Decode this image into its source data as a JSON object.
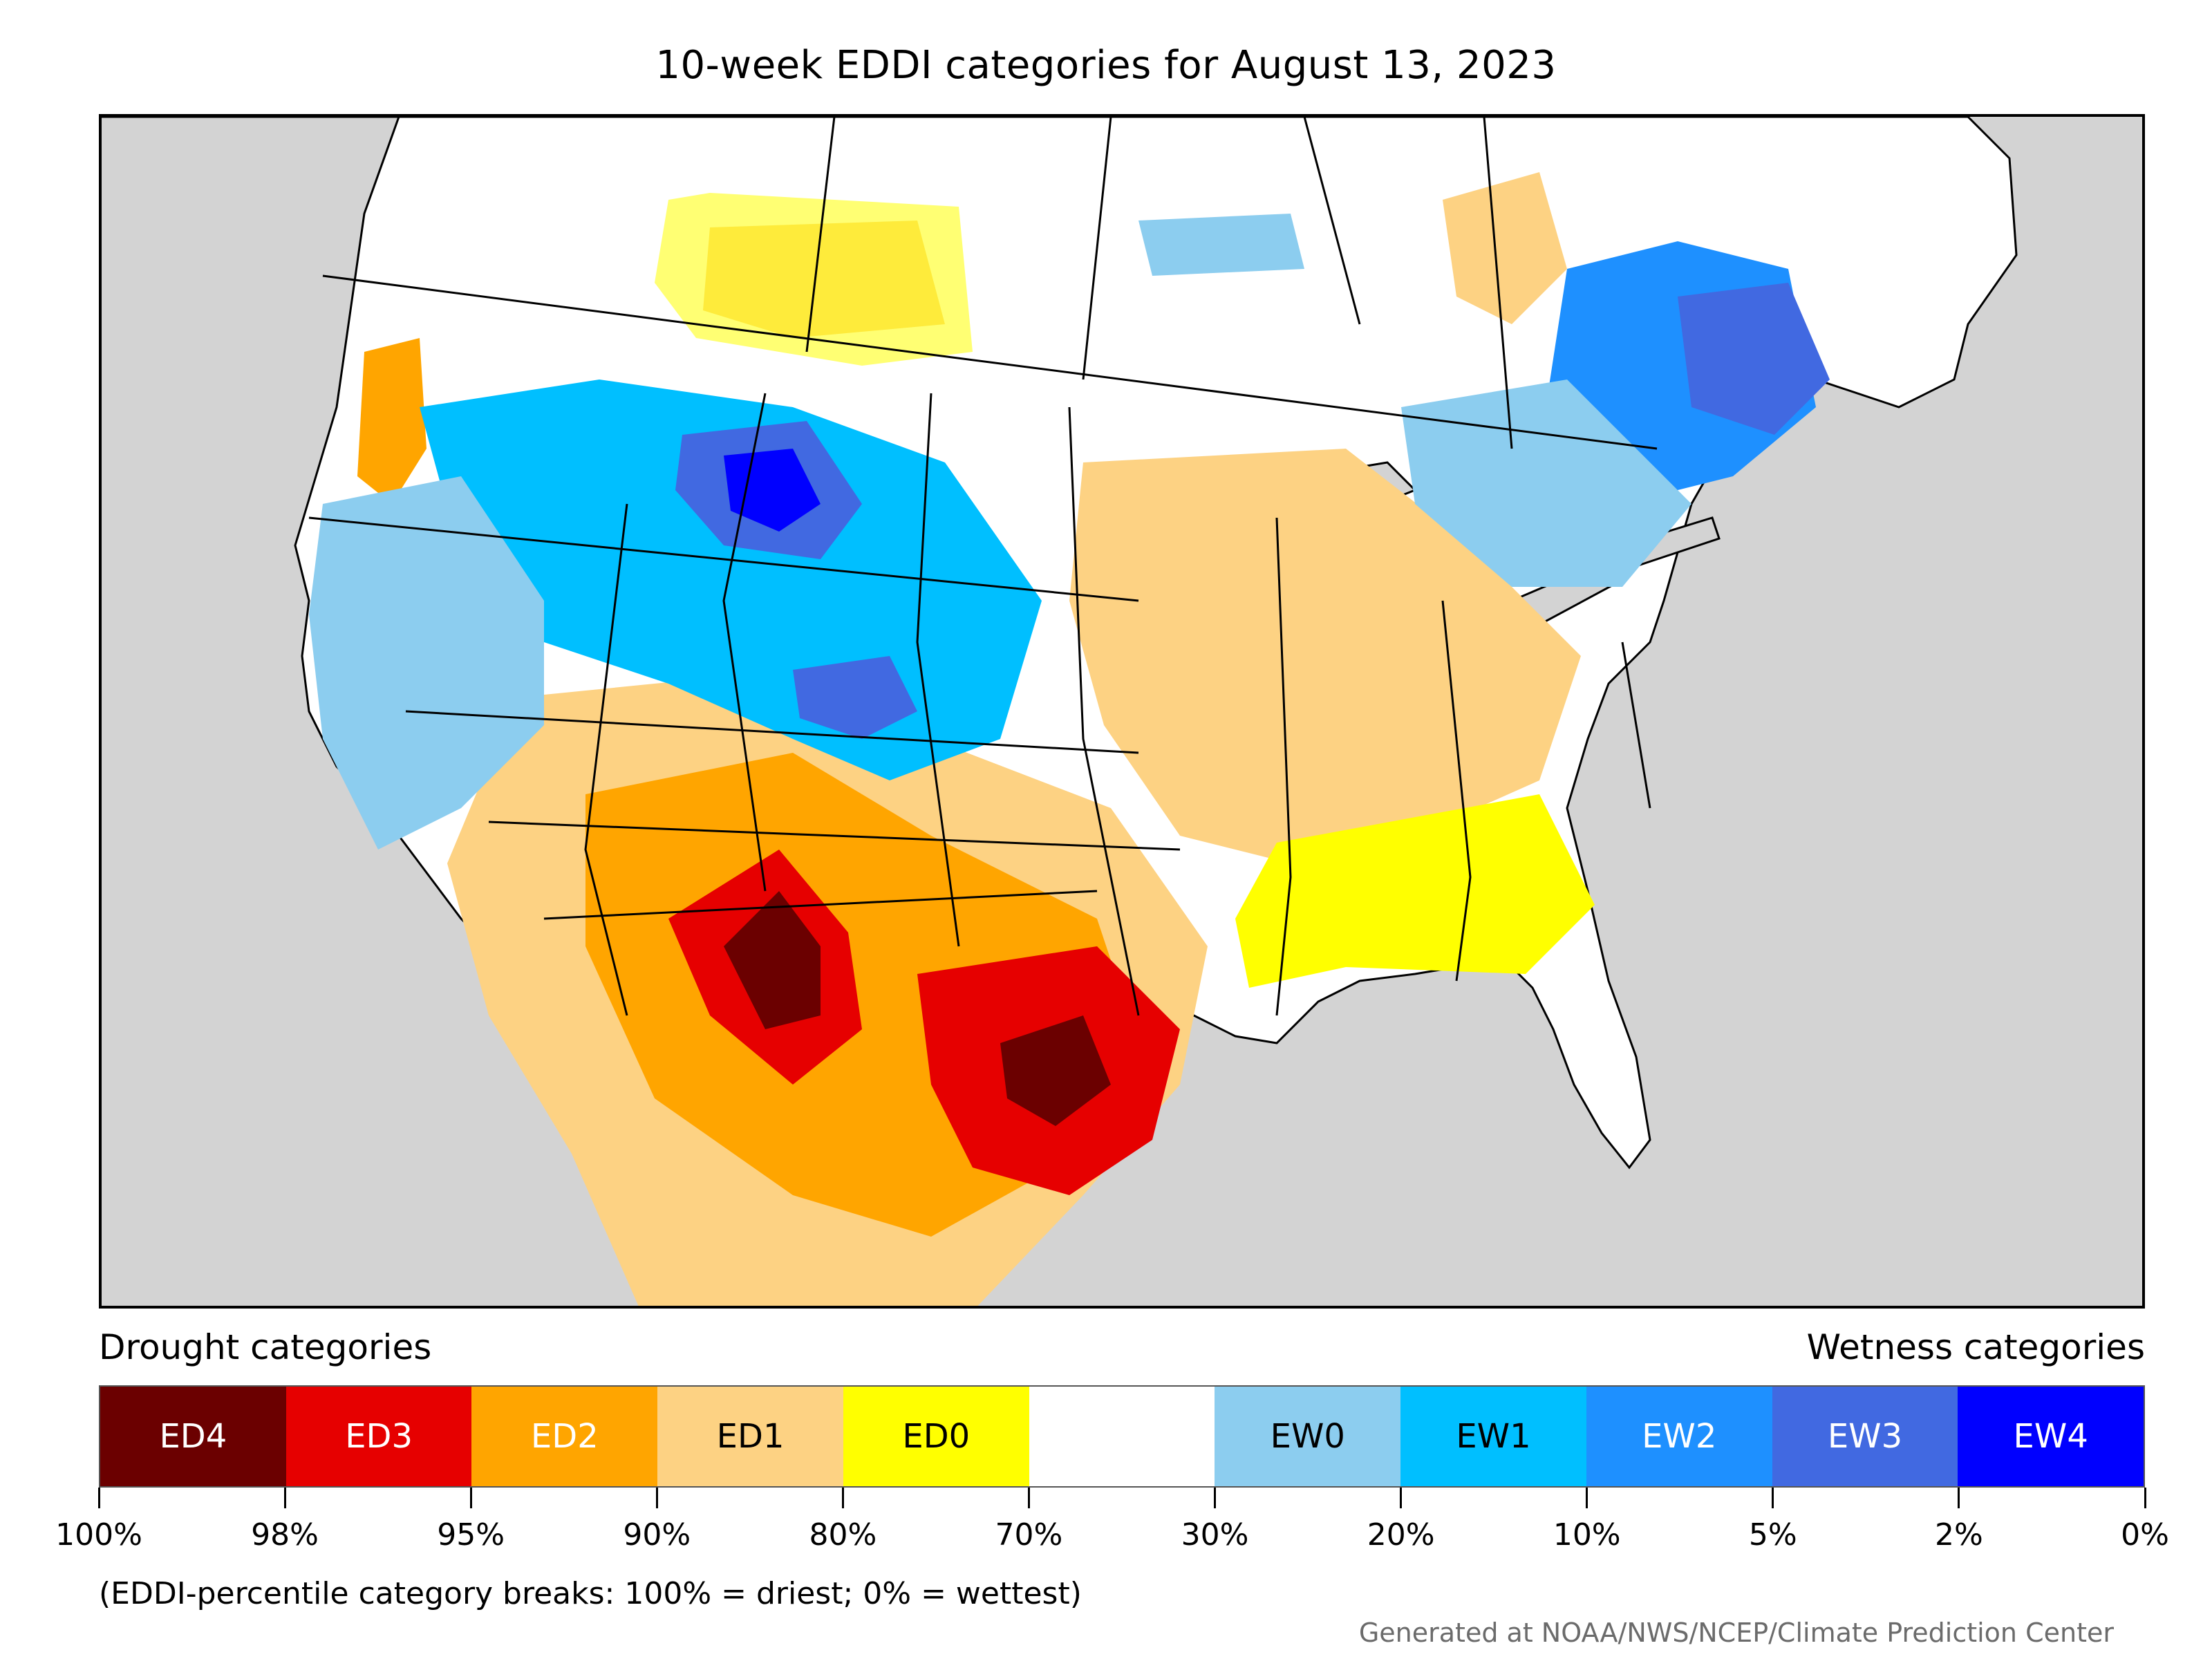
{
  "title": "10-week EDDI categories for August 13, 2023",
  "legend": {
    "drought_heading": "Drought categories",
    "wetness_heading": "Wetness categories",
    "categories": [
      {
        "label": "ED4",
        "color": "#6b0000",
        "text_color": "#ffffff"
      },
      {
        "label": "ED3",
        "color": "#e60000",
        "text_color": "#ffffff"
      },
      {
        "label": "ED2",
        "color": "#ffa500",
        "text_color": "#ffffff"
      },
      {
        "label": "ED1",
        "color": "#fdd283",
        "text_color": "#000000"
      },
      {
        "label": "ED0",
        "color": "#ffff00",
        "text_color": "#000000"
      },
      {
        "label": "",
        "color": "#ffffff",
        "text_color": "#000000"
      },
      {
        "label": "EW0",
        "color": "#8ccdef",
        "text_color": "#000000"
      },
      {
        "label": "EW1",
        "color": "#00bfff",
        "text_color": "#000000"
      },
      {
        "label": "EW2",
        "color": "#1e90ff",
        "text_color": "#ffffff"
      },
      {
        "label": "EW3",
        "color": "#4169e1",
        "text_color": "#ffffff"
      },
      {
        "label": "EW4",
        "color": "#0000ff",
        "text_color": "#ffffff"
      }
    ],
    "tick_labels": [
      "100%",
      "98%",
      "95%",
      "90%",
      "80%",
      "70%",
      "30%",
      "20%",
      "10%",
      "5%",
      "2%",
      "0%"
    ],
    "note": "(EDDI-percentile category breaks: 100% = driest; 0% = wettest)"
  },
  "credit": "Generated at NOAA/NWS/NCEP/Climate Prediction Center",
  "map": {
    "land_color": "#ffffff",
    "water_color": "#d3d3d3",
    "border_color": "#000000"
  }
}
